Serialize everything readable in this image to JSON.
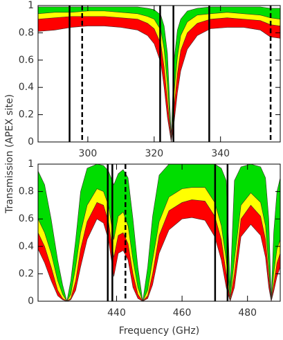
{
  "chart_data": [
    {
      "type": "area",
      "ylabel": "Transmission (APEX site)",
      "x": [
        285,
        290,
        295,
        300,
        305,
        310,
        315,
        318,
        320,
        322,
        323,
        324,
        325.15,
        326,
        327,
        328,
        330,
        333,
        337,
        342,
        347,
        352,
        355,
        358
      ],
      "series": [
        {
          "color": "#00dd00",
          "values": [
            0.99,
            0.99,
            0.99,
            0.99,
            0.99,
            0.99,
            0.99,
            0.98,
            0.97,
            0.93,
            0.85,
            0.65,
            0.05,
            0.6,
            0.82,
            0.9,
            0.96,
            0.98,
            0.99,
            0.99,
            0.99,
            0.99,
            0.98,
            0.98
          ]
        },
        {
          "color": "#ffff00",
          "values": [
            0.94,
            0.95,
            0.95,
            0.96,
            0.96,
            0.95,
            0.94,
            0.92,
            0.9,
            0.82,
            0.68,
            0.42,
            0.02,
            0.36,
            0.62,
            0.78,
            0.88,
            0.93,
            0.94,
            0.95,
            0.94,
            0.93,
            0.91,
            0.9
          ]
        },
        {
          "color": "#ff0000",
          "values": [
            0.9,
            0.91,
            0.92,
            0.92,
            0.92,
            0.91,
            0.9,
            0.87,
            0.83,
            0.72,
            0.55,
            0.3,
            0.01,
            0.25,
            0.5,
            0.67,
            0.8,
            0.87,
            0.9,
            0.91,
            0.9,
            0.89,
            0.86,
            0.85
          ]
        },
        {
          "color": "#ffffff",
          "values": [
            0.81,
            0.82,
            0.84,
            0.85,
            0.85,
            0.84,
            0.82,
            0.78,
            0.72,
            0.58,
            0.4,
            0.18,
            0,
            0.14,
            0.36,
            0.52,
            0.68,
            0.78,
            0.83,
            0.84,
            0.84,
            0.82,
            0.77,
            0.76
          ]
        }
      ],
      "vlines": [
        {
          "x": 294.5,
          "style": "solid"
        },
        {
          "x": 298.3,
          "style": "dashed"
        },
        {
          "x": 321.8,
          "style": "solid"
        },
        {
          "x": 325.8,
          "style": "solid"
        },
        {
          "x": 336.6,
          "style": "solid"
        },
        {
          "x": 355.1,
          "style": "dashed"
        }
      ],
      "xlim": [
        285,
        358
      ],
      "ylim": [
        0,
        1
      ],
      "xticks": [
        300,
        320,
        340
      ],
      "yticks": [
        0,
        0.2,
        0.4,
        0.6,
        0.8,
        1
      ]
    },
    {
      "type": "area",
      "xlabel": "Frequency (GHz)",
      "x": [
        416,
        418,
        420,
        422,
        423.5,
        424.8,
        426,
        427.5,
        429,
        431,
        434,
        436,
        437.5,
        439.15,
        440.5,
        442,
        443.5,
        445,
        446.5,
        448,
        449.5,
        451,
        453,
        456,
        460,
        463,
        467,
        470,
        472,
        473.5,
        474.7,
        476,
        478,
        481,
        484,
        485.5,
        486.5,
        487.25,
        488,
        489,
        490
      ],
      "series": [
        {
          "color": "#00dd00",
          "values": [
            0.95,
            0.85,
            0.6,
            0.3,
            0.12,
            0,
            0.15,
            0.45,
            0.8,
            0.97,
            1,
            0.99,
            0.95,
            0.85,
            0.93,
            0.96,
            0.9,
            0.6,
            0.25,
            0,
            0.25,
            0.62,
            0.92,
            1,
            1,
            1,
            1,
            1,
            0.97,
            0.88,
            0.1,
            0.88,
            0.98,
            1,
            0.98,
            0.9,
            0.6,
            0.02,
            0.5,
            0.8,
            0.9
          ]
        },
        {
          "color": "#ffff00",
          "values": [
            0.6,
            0.5,
            0.35,
            0.15,
            0.05,
            0,
            0.05,
            0.25,
            0.5,
            0.7,
            0.82,
            0.8,
            0.7,
            0.45,
            0.62,
            0.65,
            0.55,
            0.3,
            0.1,
            0,
            0.08,
            0.3,
            0.58,
            0.76,
            0.82,
            0.83,
            0.83,
            0.72,
            0.55,
            0.3,
            0.03,
            0.3,
            0.7,
            0.79,
            0.72,
            0.55,
            0.25,
            0,
            0.2,
            0.38,
            0.45
          ]
        },
        {
          "color": "#ff0000",
          "values": [
            0.5,
            0.4,
            0.25,
            0.08,
            0.02,
            0,
            0.02,
            0.15,
            0.38,
            0.58,
            0.72,
            0.7,
            0.58,
            0.32,
            0.48,
            0.5,
            0.42,
            0.2,
            0.05,
            0,
            0.04,
            0.2,
            0.48,
            0.66,
            0.72,
            0.74,
            0.73,
            0.62,
            0.45,
            0.2,
            0.01,
            0.2,
            0.6,
            0.7,
            0.62,
            0.45,
            0.18,
            0,
            0.12,
            0.28,
            0.35
          ]
        },
        {
          "color": "#ffffff",
          "values": [
            0.38,
            0.28,
            0.15,
            0.04,
            0.01,
            0,
            0.01,
            0.08,
            0.25,
            0.45,
            0.6,
            0.57,
            0.45,
            0.18,
            0.35,
            0.37,
            0.3,
            0.1,
            0.02,
            0,
            0.02,
            0.12,
            0.35,
            0.52,
            0.6,
            0.61,
            0.59,
            0.47,
            0.3,
            0.1,
            0,
            0.1,
            0.47,
            0.56,
            0.48,
            0.32,
            0.1,
            0,
            0.07,
            0.18,
            0.25
          ]
        }
      ],
      "vlines": [
        {
          "x": 437.3,
          "style": "solid"
        },
        {
          "x": 438.7,
          "style": "solid"
        },
        {
          "x": 442.7,
          "style": "dashed"
        },
        {
          "x": 470.1,
          "style": "solid"
        },
        {
          "x": 473.9,
          "style": "solid"
        }
      ],
      "xlim": [
        416,
        490
      ],
      "ylim": [
        0,
        1
      ],
      "xticks": [
        440,
        460,
        480
      ],
      "yticks": [
        0,
        0.2,
        0.4,
        0.6,
        0.8,
        1
      ]
    }
  ]
}
